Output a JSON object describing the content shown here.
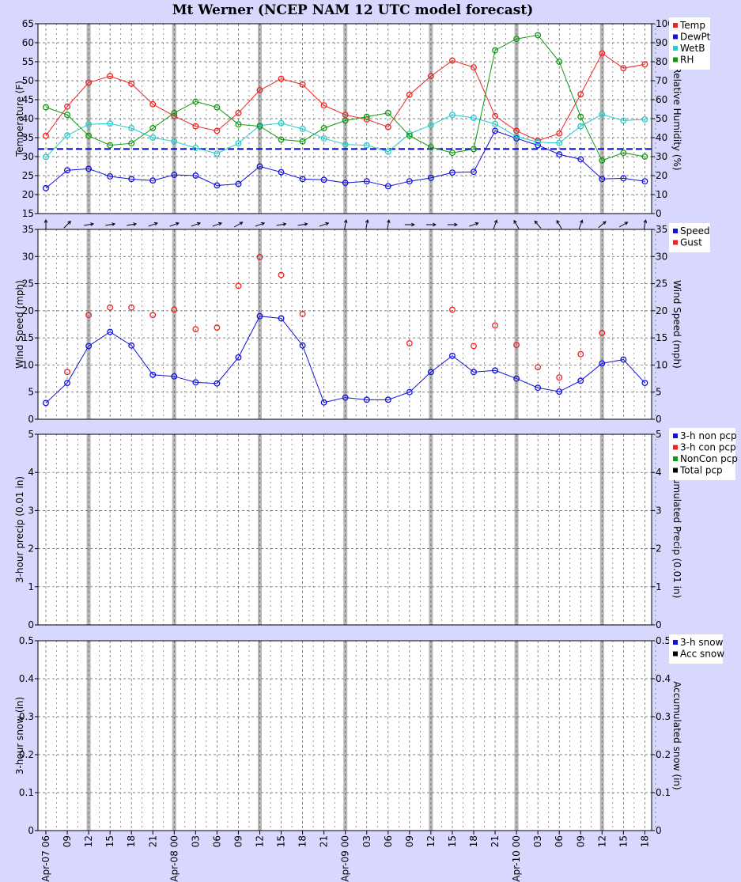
{
  "chart_data": {
    "title": "Mt Werner (NCEP NAM 12 UTC model forecast)",
    "type": "line",
    "x_labels": [
      "Apr-07 06",
      "09",
      "12",
      "15",
      "18",
      "21",
      "Apr-08 00",
      "03",
      "06",
      "09",
      "12",
      "15",
      "18",
      "21",
      "Apr-09 00",
      "03",
      "06",
      "09",
      "12",
      "15",
      "18",
      "21",
      "Apr-10 00",
      "03",
      "06",
      "09",
      "12",
      "15",
      "18"
    ],
    "day_boundaries_at_index": [
      6,
      14,
      22
    ],
    "panels": [
      {
        "id": "temperature",
        "ylabel_left": "Temperature (F)",
        "ylabel_right": "Relative Humidity (%)",
        "ylim_left": [
          15,
          65
        ],
        "ylim_right": [
          0,
          100
        ],
        "yticks_left": [
          "15",
          "20",
          "25",
          "30",
          "35",
          "40",
          "45",
          "50",
          "55",
          "60",
          "65"
        ],
        "yticks_right": [
          "0",
          "10",
          "20",
          "30",
          "40",
          "50",
          "60",
          "70",
          "80",
          "90",
          "100"
        ],
        "reference_line_y": 32,
        "legend": [
          {
            "label": "Temp",
            "color": "#ee2222"
          },
          {
            "label": "DewPt",
            "color": "#1111dd"
          },
          {
            "label": "WetB",
            "color": "#22cccc"
          },
          {
            "label": "RH",
            "color": "#119911"
          }
        ],
        "series": [
          {
            "name": "Temp",
            "color": "#ee2222",
            "axis": "left",
            "values": [
              35.5,
              43.2,
              49.5,
              51.2,
              49.2,
              43.8,
              40.7,
              38.0,
              36.8,
              41.5,
              47.5,
              50.5,
              49.0,
              43.5,
              41.0,
              39.8,
              37.8,
              46.3,
              51.2,
              55.3,
              53.5,
              40.7,
              36.8,
              34.2,
              36.1,
              46.4,
              57.2,
              53.3,
              54.3
            ]
          },
          {
            "name": "DewPt",
            "color": "#1111dd",
            "axis": "left",
            "values": [
              21.7,
              26.4,
              26.8,
              24.8,
              24.1,
              23.7,
              25.2,
              25.0,
              22.4,
              22.8,
              27.4,
              25.9,
              24.1,
              23.9,
              23.1,
              23.5,
              22.2,
              23.5,
              24.4,
              25.8,
              26.0,
              36.8,
              34.8,
              33.0,
              30.6,
              29.3,
              24.1,
              24.3,
              23.5
            ]
          },
          {
            "name": "WetB",
            "color": "#22cccc",
            "axis": "left",
            "values": [
              29.9,
              35.6,
              38.5,
              38.7,
              37.5,
              35.0,
              34.0,
              32.3,
              30.8,
              33.5,
              38.2,
              38.8,
              37.3,
              34.8,
              33.2,
              33.0,
              31.3,
              36.0,
              38.3,
              41.0,
              40.2,
              38.6,
              35.3,
              33.8,
              33.6,
              38.0,
              41.1,
              39.5,
              39.8
            ]
          },
          {
            "name": "RH",
            "color": "#119911",
            "axis": "right",
            "values": [
              56,
              52,
              41,
              36,
              37,
              45,
              53,
              59,
              56,
              47,
              46,
              39,
              38,
              45,
              49,
              51,
              53,
              41,
              35,
              32,
              34,
              86,
              92,
              94,
              80,
              51,
              28,
              32,
              30
            ]
          }
        ]
      },
      {
        "id": "wind",
        "ylabel_left": "Wind Speed (mph)",
        "ylabel_right": "Wind Speed (mph)",
        "ylim_left": [
          0,
          35
        ],
        "yticks_left": [
          "0",
          "5",
          "10",
          "15",
          "20",
          "25",
          "30",
          "35"
        ],
        "yticks_right": [
          "0",
          "5",
          "10",
          "15",
          "20",
          "25",
          "30",
          "35"
        ],
        "legend": [
          {
            "label": "Speed",
            "color": "#1111dd"
          },
          {
            "label": "Gust",
            "color": "#ee2222"
          }
        ],
        "wind_dir_deg": [
          0,
          45,
          80,
          80,
          80,
          70,
          70,
          70,
          70,
          60,
          70,
          80,
          80,
          70,
          10,
          10,
          10,
          90,
          90,
          90,
          70,
          20,
          -30,
          -40,
          -30,
          20,
          50,
          60,
          10
        ],
        "series": [
          {
            "name": "Speed",
            "color": "#1111dd",
            "values": [
              3.0,
              6.7,
              13.5,
              16.1,
              13.6,
              8.2,
              7.9,
              6.8,
              6.6,
              11.4,
              19.0,
              18.6,
              13.6,
              3.1,
              4.0,
              3.6,
              3.6,
              5.0,
              8.7,
              11.7,
              8.7,
              9.0,
              7.5,
              5.8,
              5.1,
              7.1,
              10.3,
              11.0,
              6.7
            ]
          },
          {
            "name": "Gust",
            "color": "#ee2222",
            "values": [
              null,
              8.7,
              19.2,
              20.6,
              20.6,
              19.2,
              20.2,
              16.6,
              16.9,
              24.6,
              29.9,
              26.6,
              19.4,
              null,
              null,
              null,
              null,
              14.0,
              null,
              20.2,
              13.5,
              17.3,
              13.7,
              9.6,
              7.7,
              12.0,
              15.9,
              null,
              null
            ]
          }
        ]
      },
      {
        "id": "precip",
        "ylabel_left": "3-hour precip (0.01 in)",
        "ylabel_right": "Accumulated Precip (0.01 in)",
        "ylim_left": [
          0,
          5
        ],
        "yticks_left": [
          "0",
          "1",
          "2",
          "3",
          "4",
          "5"
        ],
        "yticks_right": [
          "0",
          "1",
          "2",
          "3",
          "4",
          "5"
        ],
        "legend": [
          {
            "label": "3-h non pcp",
            "color": "#1111dd"
          },
          {
            "label": "3-h con pcp",
            "color": "#ee2222"
          },
          {
            "label": "NonCon pcp",
            "color": "#119911"
          },
          {
            "label": "Total pcp",
            "color": "#000000"
          }
        ],
        "series": []
      },
      {
        "id": "snow",
        "ylabel_left": "3-hour snow (in)",
        "ylabel_right": "Accumulated snow (in)",
        "ylim_left": [
          0,
          0.5
        ],
        "yticks_left": [
          "0",
          "0.1",
          "0.2",
          "0.3",
          "0.4",
          "0.5"
        ],
        "yticks_right": [
          "0",
          "0.1",
          "0.2",
          "0.3",
          "0.4",
          "0.5"
        ],
        "legend": [
          {
            "label": "3-h snow",
            "color": "#1111dd"
          },
          {
            "label": "Acc snow",
            "color": "#000000"
          }
        ],
        "series": []
      }
    ]
  }
}
